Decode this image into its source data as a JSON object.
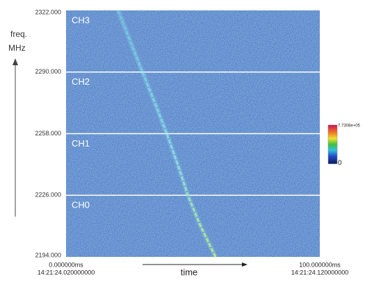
{
  "chart_data": {
    "type": "spectrogram",
    "y_label_lines": [
      "freq.",
      "MHz"
    ],
    "x_label": "time",
    "xlim": [
      0,
      100
    ],
    "xticks": [
      {
        "value": 0,
        "label": "0.000000ms"
      },
      {
        "value": 100,
        "label": "100.000000ms"
      }
    ],
    "xtick_times": [
      "14:21:24.020000000",
      "14:21:24.120000000"
    ],
    "ylim": [
      2194,
      2322
    ],
    "yticks": [
      {
        "value": 2322,
        "label": "2322.000"
      },
      {
        "value": 2290,
        "label": "2290.000"
      },
      {
        "value": 2258,
        "label": "2258.000"
      },
      {
        "value": 2226,
        "label": "2226.000"
      },
      {
        "value": 2194,
        "label": "2194.000"
      }
    ],
    "channels": [
      "CH3",
      "CH2",
      "CH1",
      "CH0"
    ],
    "grid": true,
    "x": [
      20.5,
      25.3,
      30.1,
      35,
      39.7,
      44,
      48,
      53,
      58.9
    ],
    "values": [
      2322,
      2306,
      2290,
      2274,
      2258,
      2242,
      2226,
      2210,
      2194
    ],
    "color": "#8fe0e8",
    "clim": [
      0,
      773080
    ],
    "colorbar_ticks": [
      {
        "value": 773080,
        "label": "7.7308e+05"
      },
      0
    ]
  }
}
